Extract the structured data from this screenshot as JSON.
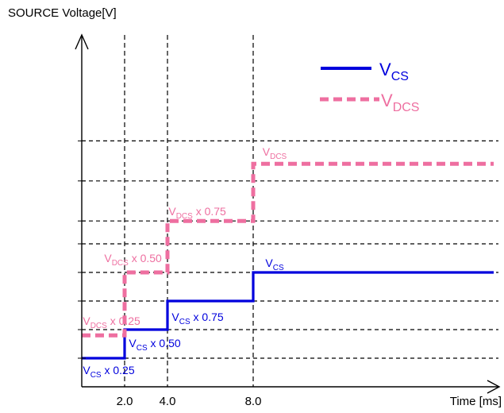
{
  "chart_data": {
    "type": "line",
    "ylabel": "SOURCE Voltage[V]",
    "xlabel": "Time [ms]",
    "x_ticks": [
      "2.0",
      "4.0",
      "8.0"
    ],
    "x_tick_values": [
      2,
      4,
      8
    ],
    "xlim": [
      0,
      10
    ],
    "ylim": [
      0,
      1.5
    ],
    "grid": true,
    "legend_position": "top-right",
    "colors": {
      "vcs": "#0000dd",
      "vdcs": "#ee6fa0",
      "axis": "#000000",
      "grid": "#000000"
    },
    "series": [
      {
        "name": "VCS",
        "name_main": "V",
        "name_sub": "CS",
        "style": "solid",
        "steps": [
          [
            0,
            0.25
          ],
          [
            2,
            0.5
          ],
          [
            4,
            0.75
          ],
          [
            8,
            1.0
          ],
          [
            10,
            1.0
          ]
        ]
      },
      {
        "name": "VDCS",
        "name_main": "V",
        "name_sub": "DCS",
        "style": "dashed",
        "steps": [
          [
            0,
            0.45
          ],
          [
            2,
            1.0
          ],
          [
            4,
            1.45
          ],
          [
            8,
            1.95
          ],
          [
            10,
            1.95
          ]
        ]
      }
    ],
    "annotations": [
      {
        "series": "vcs",
        "main": "V",
        "sub": "CS",
        "suffix": " x 0.25",
        "x": 0.05,
        "y": 0.25,
        "anchor": "start",
        "dy": 20
      },
      {
        "series": "vcs",
        "main": "V",
        "sub": "CS",
        "suffix": " x 0.50",
        "x": 2.2,
        "y": 0.5,
        "anchor": "start",
        "dy": 22
      },
      {
        "series": "vcs",
        "main": "V",
        "sub": "CS",
        "suffix": " x 0.75",
        "x": 4.2,
        "y": 0.75,
        "anchor": "start",
        "dy": 25
      },
      {
        "series": "vcs",
        "main": "V",
        "sub": "CS",
        "suffix": "",
        "x": 9.0,
        "y": 1.0,
        "anchor": "middle",
        "dy": -7
      },
      {
        "series": "vdcs",
        "main": "V",
        "sub": "DCS",
        "suffix": " x 0.25",
        "x": 0.05,
        "y": 0.45,
        "anchor": "start",
        "dy": -13
      },
      {
        "series": "vdcs",
        "main": "V",
        "sub": "DCS",
        "suffix": " x 0.50",
        "x": 1.05,
        "y": 1.0,
        "anchor": "start",
        "dy": -13
      },
      {
        "series": "vdcs",
        "main": "V",
        "sub": "DCS",
        "suffix": " x 0.75",
        "x": 4.05,
        "y": 1.45,
        "anchor": "start",
        "dy": -7
      },
      {
        "series": "vdcs",
        "main": "V",
        "sub": "DCS",
        "suffix": "",
        "x": 9.0,
        "y": 1.95,
        "anchor": "middle",
        "dy": -10
      }
    ]
  }
}
